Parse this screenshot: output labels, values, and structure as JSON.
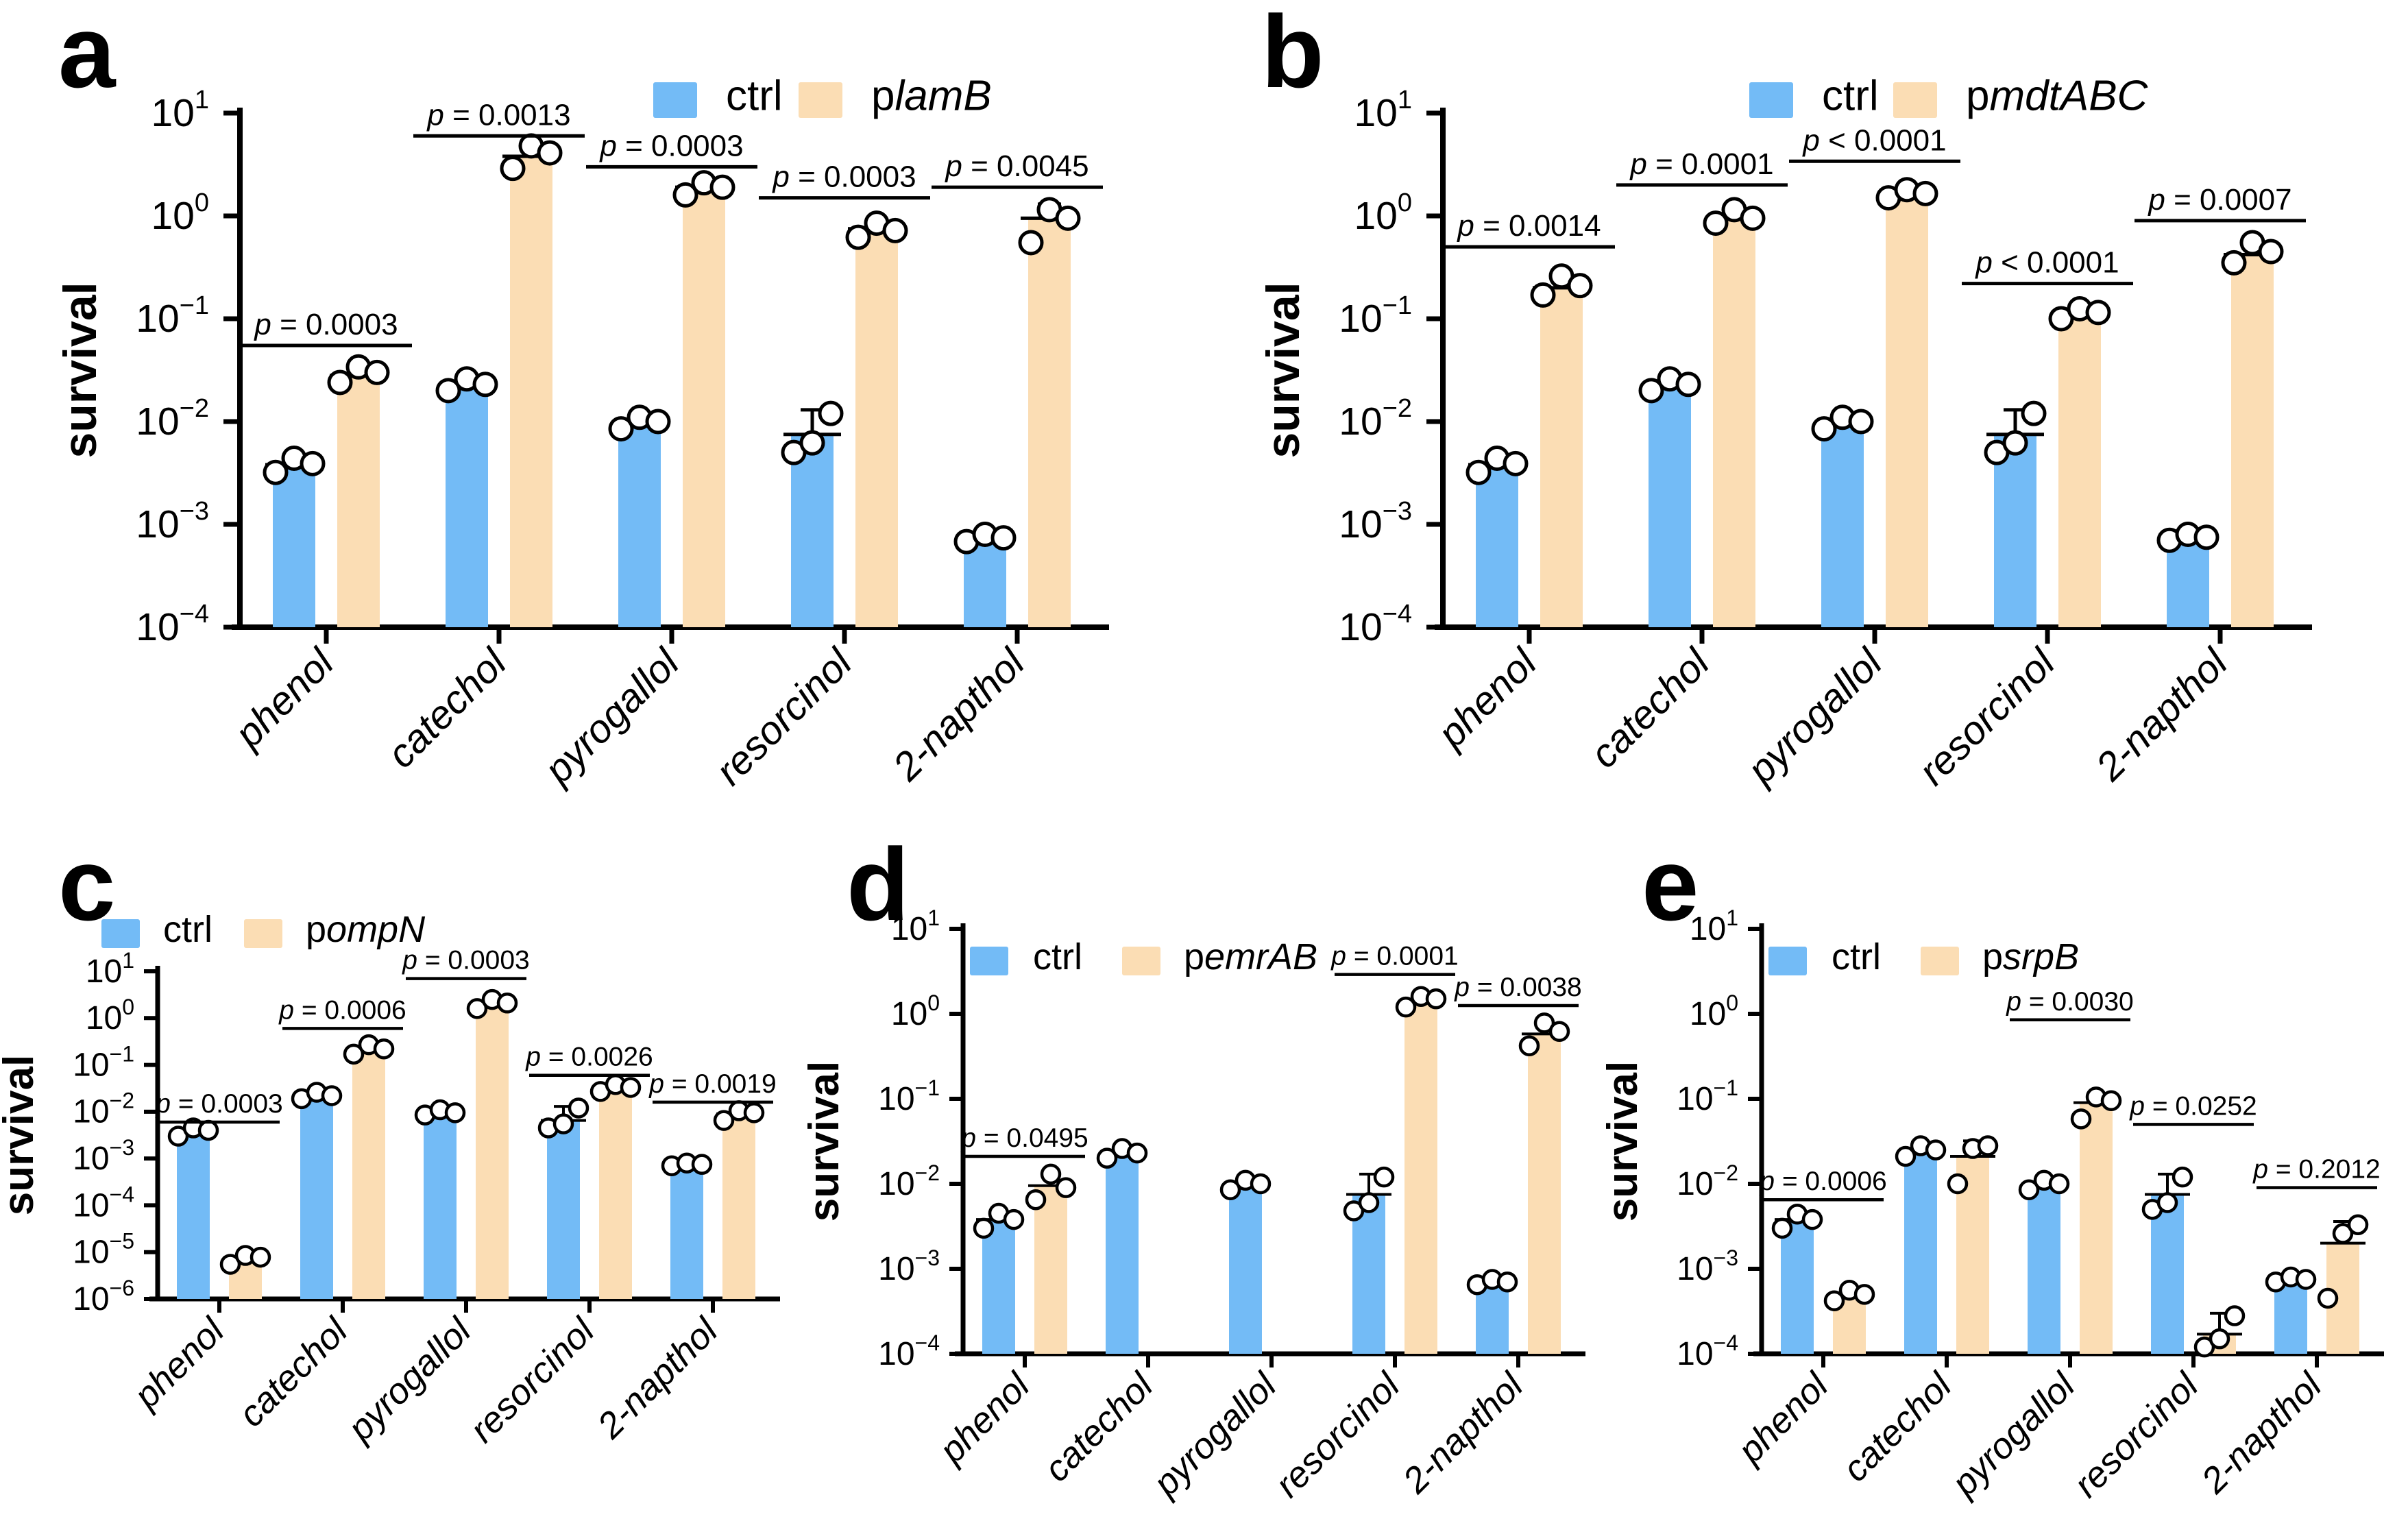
{
  "colors": {
    "ctrl": "#73bbf6",
    "treatment": "#fbddb4",
    "axis": "#000000",
    "point_fill": "#ffffff"
  },
  "ylabel": "survival",
  "categories": [
    "phenol",
    "catechol",
    "pyrogallol",
    "resorcinol",
    "2-napthol"
  ],
  "chart_data": [
    {
      "panel": "a",
      "type": "bar",
      "yscale": "log",
      "ylim": [
        0.0001,
        10
      ],
      "ytick_exponents": [
        1,
        0,
        -1,
        -2,
        -3,
        -4
      ],
      "ylabel": "survival",
      "legend": {
        "ctrl_label": "ctrl",
        "treatment_prefix": "p",
        "treatment_gene": "lamB"
      },
      "categories": [
        "phenol",
        "catechol",
        "pyrogallol",
        "resorcinol",
        "2-napthol"
      ],
      "pairs": [
        {
          "category": "phenol",
          "p_label": "p = 0.0003",
          "bracket_y": 0.055,
          "ctrl": {
            "value": 0.0038,
            "points": [
              0.0032,
              0.0044,
              0.0039
            ]
          },
          "treatment": {
            "value": 0.028,
            "points": [
              0.024,
              0.034,
              0.03
            ]
          }
        },
        {
          "category": "catechol",
          "p_label": "p = 0.0013",
          "bracket_y": 6.0,
          "ctrl": {
            "value": 0.022,
            "points": [
              0.02,
              0.026,
              0.023
            ]
          },
          "treatment": {
            "value": 3.8,
            "points": [
              2.9,
              4.8,
              4.1
            ]
          }
        },
        {
          "category": "pyrogallol",
          "p_label": "p = 0.0003",
          "bracket_y": 3.0,
          "ctrl": {
            "value": 0.0095,
            "points": [
              0.0085,
              0.011,
              0.01
            ]
          },
          "treatment": {
            "value": 1.9,
            "points": [
              1.6,
              2.1,
              1.9
            ]
          }
        },
        {
          "category": "resorcinol",
          "p_label": "p = 0.0003",
          "bracket_y": 1.5,
          "ctrl": {
            "value": 0.0075,
            "points": [
              0.005,
              0.0062,
              0.012
            ],
            "err_top": 0.013
          },
          "treatment": {
            "value": 0.75,
            "points": [
              0.62,
              0.85,
              0.72
            ]
          }
        },
        {
          "category": "2-napthol",
          "p_label": "p = 0.0045",
          "bracket_y": 1.9,
          "ctrl": {
            "value": 0.00075,
            "points": [
              0.00068,
              0.0008,
              0.00074
            ]
          },
          "treatment": {
            "value": 0.95,
            "points": [
              0.55,
              1.15,
              0.95
            ],
            "err_top": 1.3
          }
        }
      ]
    },
    {
      "panel": "b",
      "type": "bar",
      "yscale": "log",
      "ylim": [
        0.0001,
        10
      ],
      "ytick_exponents": [
        1,
        0,
        -1,
        -2,
        -3,
        -4
      ],
      "ylabel": "survival",
      "legend": {
        "ctrl_label": "ctrl",
        "treatment_prefix": "p",
        "treatment_gene": "mdtABC"
      },
      "categories": [
        "phenol",
        "catechol",
        "pyrogallol",
        "resorcinol",
        "2-napthol"
      ],
      "pairs": [
        {
          "category": "phenol",
          "p_label": "p = 0.0014",
          "bracket_y": 0.5,
          "ctrl": {
            "value": 0.0038,
            "points": [
              0.0032,
              0.0044,
              0.0039
            ]
          },
          "treatment": {
            "value": 0.2,
            "points": [
              0.17,
              0.26,
              0.21
            ],
            "err_top": 0.28
          }
        },
        {
          "category": "catechol",
          "p_label": "p = 0.0001",
          "bracket_y": 2.0,
          "ctrl": {
            "value": 0.022,
            "points": [
              0.02,
              0.026,
              0.023
            ]
          },
          "treatment": {
            "value": 0.95,
            "points": [
              0.85,
              1.15,
              0.95
            ]
          }
        },
        {
          "category": "pyrogallol",
          "p_label": "p < 0.0001",
          "bracket_y": 3.4,
          "ctrl": {
            "value": 0.0095,
            "points": [
              0.0085,
              0.011,
              0.01
            ]
          },
          "treatment": {
            "value": 1.6,
            "points": [
              1.5,
              1.8,
              1.65
            ]
          }
        },
        {
          "category": "resorcinol",
          "p_label": "p < 0.0001",
          "bracket_y": 0.22,
          "ctrl": {
            "value": 0.0075,
            "points": [
              0.005,
              0.0062,
              0.012
            ],
            "err_top": 0.013
          },
          "treatment": {
            "value": 0.115,
            "points": [
              0.1,
              0.125,
              0.115
            ]
          }
        },
        {
          "category": "2-napthol",
          "p_label": "p = 0.0007",
          "bracket_y": 0.9,
          "ctrl": {
            "value": 0.00075,
            "points": [
              0.0007,
              0.0008,
              0.00075
            ]
          },
          "treatment": {
            "value": 0.42,
            "points": [
              0.35,
              0.55,
              0.45
            ],
            "err_top": 0.55
          }
        }
      ]
    },
    {
      "panel": "c",
      "type": "bar",
      "yscale": "log",
      "ylim": [
        1e-06,
        10
      ],
      "ytick_exponents": [
        1,
        0,
        -1,
        -2,
        -3,
        -4,
        -5,
        -6
      ],
      "ylabel": "survival",
      "legend": {
        "ctrl_label": "ctrl",
        "treatment_prefix": "p",
        "treatment_gene": "ompN"
      },
      "categories": [
        "phenol",
        "catechol",
        "pyrogallol",
        "resorcinol",
        "2-napthol"
      ],
      "pairs": [
        {
          "category": "phenol",
          "p_label": "p = 0.0003",
          "bracket_y": 0.006,
          "ctrl": {
            "value": 0.0038,
            "points": [
              0.003,
              0.0045,
              0.004
            ]
          },
          "treatment": {
            "value": 7.5e-06,
            "points": [
              5.5e-06,
              8.5e-06,
              7.8e-06
            ]
          }
        },
        {
          "category": "catechol",
          "p_label": "p = 0.0006",
          "bracket_y": 0.6,
          "ctrl": {
            "value": 0.022,
            "points": [
              0.019,
              0.026,
              0.022
            ]
          },
          "treatment": {
            "value": 0.21,
            "points": [
              0.17,
              0.27,
              0.22
            ]
          }
        },
        {
          "category": "pyrogallol",
          "p_label": "p = 0.0003",
          "bracket_y": 7.0,
          "ctrl": {
            "value": 0.0095,
            "points": [
              0.0085,
              0.011,
              0.0095
            ]
          },
          "treatment": {
            "value": 2.0,
            "points": [
              1.6,
              2.5,
              2.1
            ]
          }
        },
        {
          "category": "resorcinol",
          "p_label": "p = 0.0026",
          "bracket_y": 0.06,
          "ctrl": {
            "value": 0.0065,
            "points": [
              0.0045,
              0.0055,
              0.012
            ],
            "err_top": 0.013
          },
          "treatment": {
            "value": 0.032,
            "points": [
              0.027,
              0.038,
              0.033
            ]
          }
        },
        {
          "category": "2-napthol",
          "p_label": "p = 0.0019",
          "bracket_y": 0.016,
          "ctrl": {
            "value": 0.00075,
            "points": [
              0.0007,
              0.0008,
              0.00075
            ]
          },
          "treatment": {
            "value": 0.009,
            "points": [
              0.0065,
              0.0105,
              0.0095
            ],
            "err_top": 0.012
          }
        }
      ]
    },
    {
      "panel": "d",
      "type": "bar",
      "yscale": "log",
      "ylim": [
        0.0001,
        10
      ],
      "ytick_exponents": [
        1,
        0,
        -1,
        -2,
        -3,
        -4
      ],
      "ylabel": "survival",
      "legend": {
        "ctrl_label": "ctrl",
        "treatment_prefix": "p",
        "treatment_gene": "emrAB"
      },
      "categories": [
        "phenol",
        "catechol",
        "pyrogallol",
        "resorcinol",
        "2-napthol"
      ],
      "pairs": [
        {
          "category": "phenol",
          "p_label": "p = 0.0495",
          "bracket_y": 0.021,
          "ctrl": {
            "value": 0.0038,
            "points": [
              0.003,
              0.0045,
              0.0038
            ]
          },
          "treatment": {
            "value": 0.0095,
            "points": [
              0.0065,
              0.013,
              0.009
            ],
            "err_top": 0.013
          }
        },
        {
          "category": "catechol",
          "p_label": null,
          "bracket_y": null,
          "ctrl": {
            "value": 0.022,
            "points": [
              0.02,
              0.026,
              0.023
            ]
          },
          "treatment": null
        },
        {
          "category": "pyrogallol",
          "p_label": null,
          "bracket_y": null,
          "ctrl": {
            "value": 0.0095,
            "points": [
              0.0085,
              0.011,
              0.01
            ]
          },
          "treatment": null
        },
        {
          "category": "resorcinol",
          "p_label": "p = 0.0001",
          "bracket_y": 2.9,
          "ctrl": {
            "value": 0.0075,
            "points": [
              0.0048,
              0.006,
              0.012
            ],
            "err_top": 0.013
          },
          "treatment": {
            "value": 1.4,
            "points": [
              1.2,
              1.6,
              1.5
            ]
          }
        },
        {
          "category": "2-napthol",
          "p_label": "p = 0.0038",
          "bracket_y": 1.25,
          "ctrl": {
            "value": 0.0007,
            "points": [
              0.00065,
              0.00075,
              0.0007
            ]
          },
          "treatment": {
            "value": 0.58,
            "points": [
              0.42,
              0.78,
              0.62
            ],
            "err_top": 0.82
          }
        }
      ]
    },
    {
      "panel": "e",
      "type": "bar",
      "yscale": "log",
      "ylim": [
        0.0001,
        10
      ],
      "ytick_exponents": [
        1,
        0,
        -1,
        -2,
        -3,
        -4
      ],
      "ylabel": "survival",
      "legend": {
        "ctrl_label": "ctrl",
        "treatment_prefix": "p",
        "treatment_gene": "srpB"
      },
      "categories": [
        "phenol",
        "catechol",
        "pyrogallol",
        "resorcinol",
        "2-napthol"
      ],
      "pairs": [
        {
          "category": "phenol",
          "p_label": "p = 0.0006",
          "bracket_y": 0.0065,
          "ctrl": {
            "value": 0.0038,
            "points": [
              0.003,
              0.0044,
              0.0038
            ]
          },
          "treatment": {
            "value": 0.0005,
            "points": [
              0.00042,
              0.00056,
              0.0005
            ]
          }
        },
        {
          "category": "catechol",
          "p_label": null,
          "bracket_y": null,
          "ctrl": {
            "value": 0.024,
            "points": [
              0.021,
              0.028,
              0.025
            ],
            "err_top": 0.031
          },
          "treatment": {
            "value": 0.021,
            "points": [
              0.01,
              0.026,
              0.028
            ],
            "err_top": 0.032
          }
        },
        {
          "category": "pyrogallol",
          "p_label": "p = 0.0030",
          "bracket_y": 0.85,
          "ctrl": {
            "value": 0.0095,
            "points": [
              0.0085,
              0.011,
              0.01
            ]
          },
          "treatment": {
            "value": 0.09,
            "points": [
              0.058,
              0.105,
              0.095
            ],
            "err_top": 0.112
          }
        },
        {
          "category": "resorcinol",
          "p_label": "p = 0.0252",
          "bracket_y": 0.05,
          "ctrl": {
            "value": 0.0075,
            "points": [
              0.005,
              0.006,
              0.012
            ],
            "err_top": 0.013
          },
          "treatment": {
            "value": 0.00017,
            "points": [
              0.00012,
              0.00015,
              0.00028
            ],
            "err_top": 0.0003
          }
        },
        {
          "category": "2-napthol",
          "p_label": "p = 0.2012",
          "bracket_y": 0.009,
          "ctrl": {
            "value": 0.00075,
            "points": [
              0.0007,
              0.0008,
              0.00075
            ]
          },
          "treatment": {
            "value": 0.002,
            "points": [
              0.00045,
              0.0026,
              0.0033
            ],
            "err_top": 0.0036
          }
        }
      ]
    }
  ]
}
